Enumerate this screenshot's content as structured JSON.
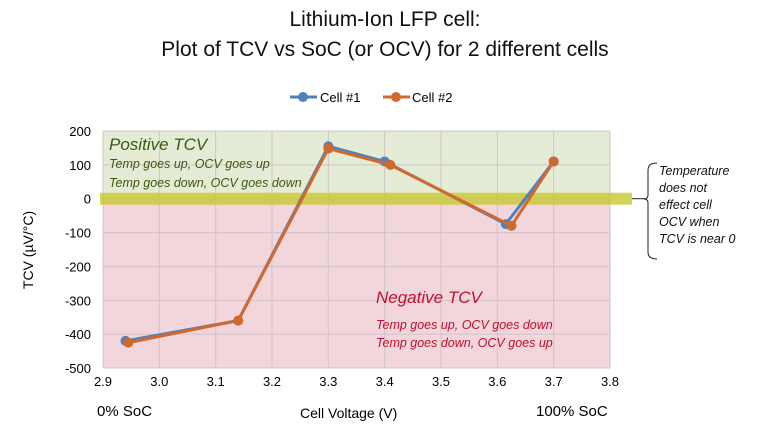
{
  "chart_data": {
    "type": "line",
    "title": [
      "Lithium-Ion LFP cell:",
      "Plot of TCV vs SoC (or OCV) for 2 different cells"
    ],
    "xlabel": "Cell Voltage (V)",
    "ylabel": "TCV (µV/°C)",
    "xlim": [
      2.9,
      3.8
    ],
    "ylim": [
      -500,
      200
    ],
    "xticks": [
      "2.9",
      "3.0",
      "3.1",
      "3.2",
      "3.3",
      "3.4",
      "3.5",
      "3.6",
      "3.7",
      "3.8"
    ],
    "yticks": [
      "200",
      "100",
      "0",
      "-100",
      "-200",
      "-300",
      "-400",
      "-500"
    ],
    "grid": true,
    "legend_position": "top-center",
    "series": [
      {
        "name": "Cell #1",
        "color": "#4f81bd",
        "x": [
          2.94,
          3.14,
          3.3,
          3.4,
          3.615,
          3.7
        ],
        "y": [
          -420,
          -360,
          155,
          110,
          -75,
          110
        ]
      },
      {
        "name": "Cell #2",
        "color": "#d0692e",
        "x": [
          2.945,
          3.14,
          3.3,
          3.41,
          3.625,
          3.7
        ],
        "y": [
          -425,
          -360,
          148,
          100,
          -80,
          110
        ]
      }
    ],
    "annotations": {
      "soc_low": "0% SoC",
      "soc_high": "100% SoC",
      "positive_title": "Positive TCV",
      "positive_line1": "Temp goes up, OCV goes up",
      "positive_line2": "Temp goes down, OCV goes down",
      "negative_title": "Negative TCV",
      "negative_line1": "Temp goes up, OCV goes down",
      "negative_line2": "Temp goes down, OCV goes up",
      "note": [
        "Temperature",
        "does not",
        "effect cell",
        "OCV when",
        "TCV is near 0"
      ]
    }
  }
}
